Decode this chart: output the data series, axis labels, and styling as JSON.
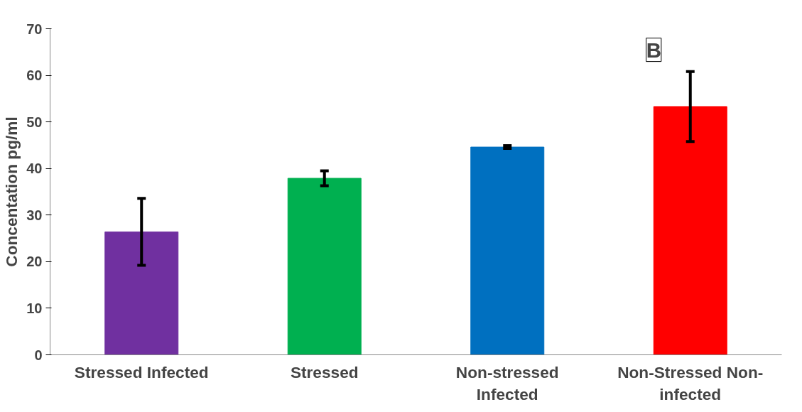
{
  "chart_data": {
    "type": "bar",
    "ylabel": "Concentation pg/ml",
    "categories": [
      "Stressed Infected",
      "Stressed",
      "Non-stressed Infected",
      "Non-Stressed Non-infected"
    ],
    "values": [
      26.4,
      37.9,
      44.6,
      53.3
    ],
    "colors": [
      "#7030a0",
      "#00b050",
      "#0070c0",
      "#ff0000"
    ],
    "errors": [
      7.2,
      1.6,
      0.3,
      7.5
    ],
    "ylim": [
      0,
      70
    ],
    "yticks": [
      0,
      10,
      20,
      30,
      40,
      50,
      60,
      70
    ],
    "grid": false,
    "annotations": [
      "B"
    ]
  }
}
